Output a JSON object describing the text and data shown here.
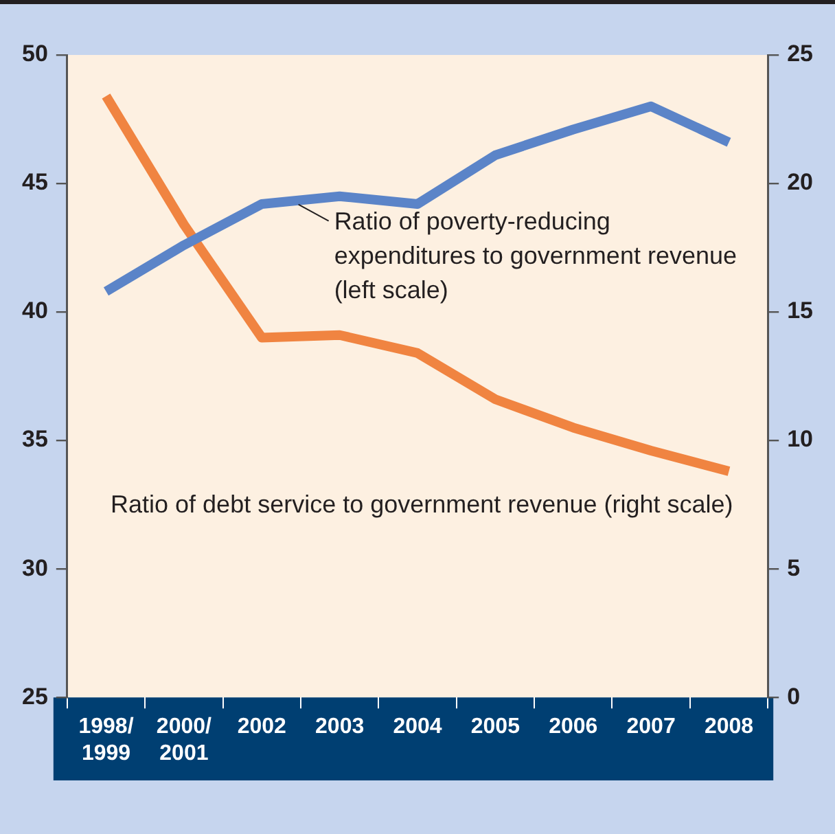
{
  "chart_data": {
    "type": "line",
    "categories": [
      "1998/1999",
      "2000/2001",
      "2002",
      "2003",
      "2004",
      "2005",
      "2006",
      "2007",
      "2008"
    ],
    "series": [
      {
        "name": "Ratio of poverty-reducing expenditures to government revenue (left scale)",
        "color": "#5b84c8",
        "values": [
          40.8,
          42.6,
          44.2,
          44.5,
          44.2,
          46.1,
          47.1,
          48.0,
          46.6
        ]
      },
      {
        "name": "Ratio of debt service to government revenue (right scale)",
        "color": "#f08441",
        "axis": "y2",
        "values": [
          23.4,
          18.4,
          14.0,
          14.1,
          13.4,
          11.6,
          10.5,
          9.6,
          8.8
        ]
      }
    ],
    "ylim": [
      25,
      50
    ],
    "yticks": [
      25,
      30,
      35,
      40,
      45,
      50
    ],
    "y2lim": [
      0,
      25
    ],
    "y2ticks": [
      0,
      5,
      10,
      15,
      20,
      25
    ],
    "grid": false,
    "legend": false,
    "marker": "none",
    "line_style": "solid"
  }
}
